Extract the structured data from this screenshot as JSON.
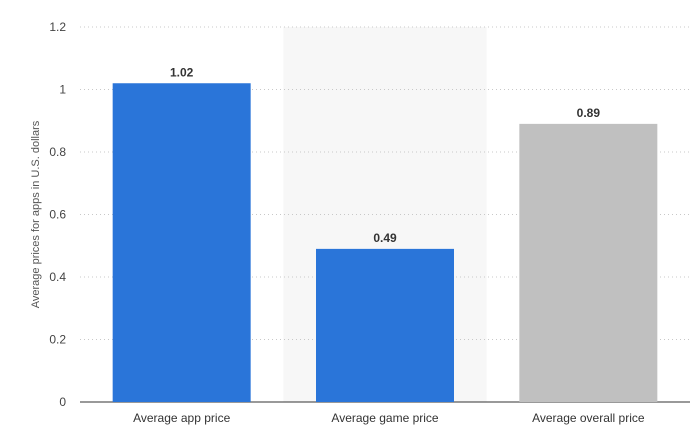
{
  "chart_data": {
    "type": "bar",
    "categories": [
      "Average app price",
      "Average game price",
      "Average overall price"
    ],
    "values": [
      1.02,
      0.49,
      0.89
    ],
    "value_labels": [
      "1.02",
      "0.49",
      "0.89"
    ],
    "bar_colors": [
      "#2a75d9",
      "#2a75d9",
      "#c0c0c0"
    ],
    "highlighted_category_index": 1,
    "highlight_color": "#f7f7f7",
    "title": "",
    "xlabel": "",
    "ylabel": "Average prices for apps in U.S. dollars",
    "ylim": [
      0,
      1.2
    ],
    "yticks": [
      0,
      0.2,
      0.4,
      0.6,
      0.8,
      1,
      1.2
    ],
    "ytick_labels": [
      "0",
      "0.2",
      "0.4",
      "0.6",
      "0.8",
      "1",
      "1.2"
    ],
    "grid": true,
    "legend": "none"
  }
}
